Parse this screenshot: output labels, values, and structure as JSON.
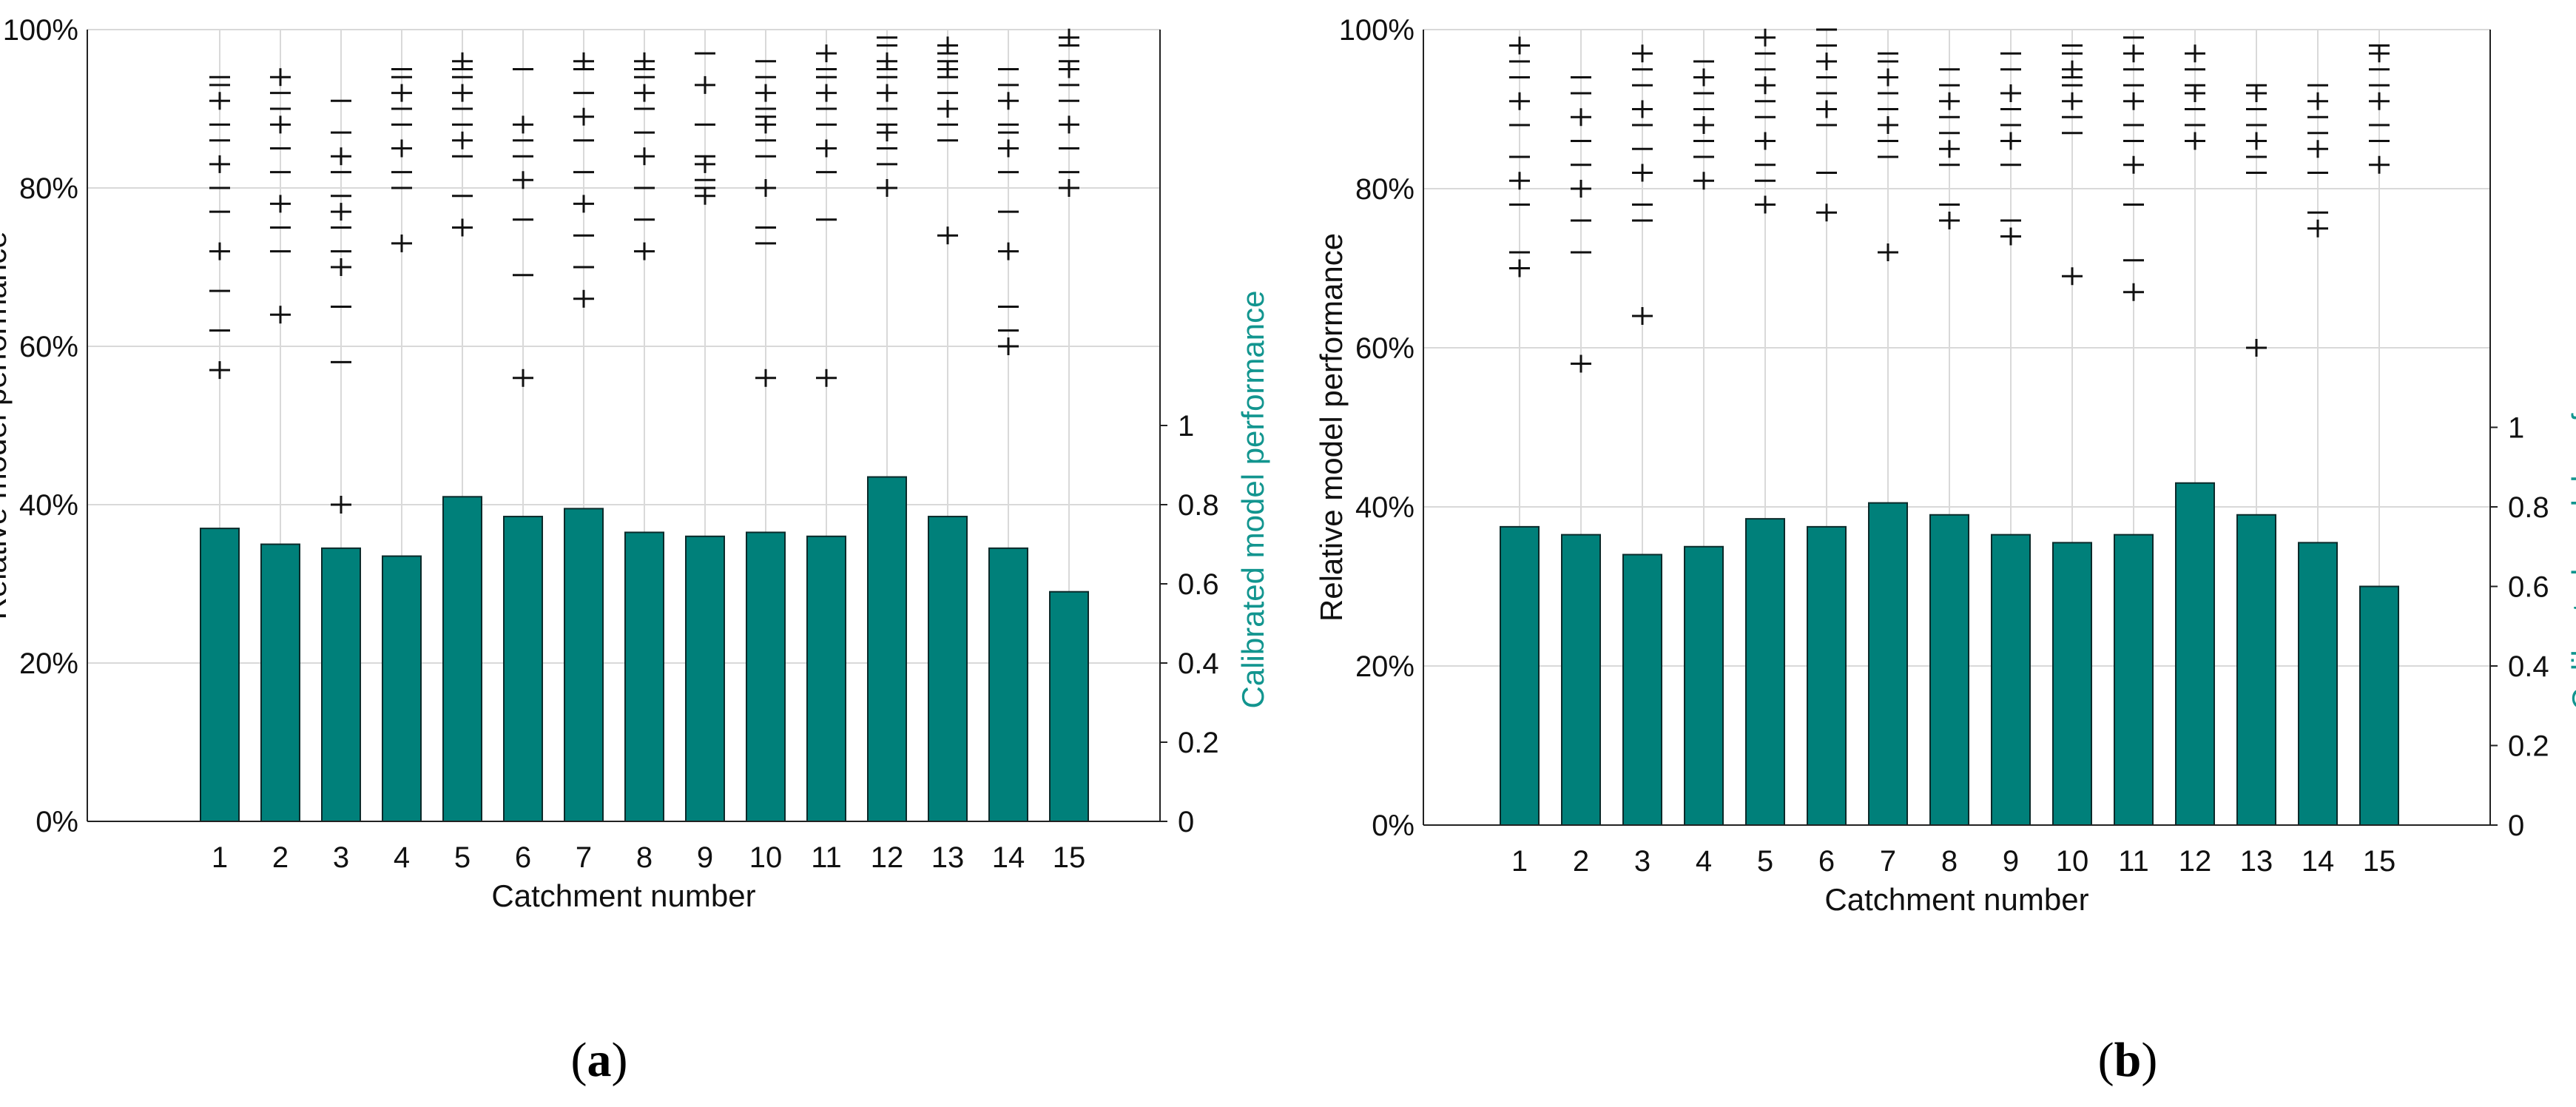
{
  "colors": {
    "bar": "#00807A",
    "bar_edge": "#0b2a2a",
    "grid": "#d9d9d9",
    "marker": "#111111",
    "right_axis_title": "#12958F"
  },
  "chart_data": [
    {
      "panel_id": "a",
      "caption_letter": "a",
      "caption_open": "(",
      "caption_close": ")",
      "type": "bar",
      "title": "",
      "xlabel": "Catchment number",
      "ylabel": "Relative model performance",
      "ylabel_right": "Calibrated model performance",
      "categories": [
        "1",
        "2",
        "3",
        "4",
        "5",
        "6",
        "7",
        "8",
        "9",
        "10",
        "11",
        "12",
        "13",
        "14",
        "15"
      ],
      "ylim": [
        0,
        100
      ],
      "ylim_right": [
        0,
        2
      ],
      "yticks": [
        "0%",
        "20%",
        "40%",
        "60%",
        "80%",
        "100%"
      ],
      "yticks_right": [
        "0",
        "0.2",
        "0.4",
        "0.6",
        "0.8",
        "1"
      ],
      "grid": true,
      "series": [
        {
          "name": "Calibrated model performance",
          "axis": "right",
          "values": [
            0.74,
            0.7,
            0.69,
            0.67,
            0.82,
            0.77,
            0.79,
            0.73,
            0.72,
            0.73,
            0.72,
            0.87,
            0.77,
            0.69,
            0.58
          ]
        }
      ],
      "scatter_markers": {
        "name": "Relative model performance",
        "axis": "left",
        "values": [
          [
            57,
            62,
            67,
            72,
            77,
            80,
            83,
            86,
            88,
            91,
            93,
            94
          ],
          [
            64,
            72,
            75,
            78,
            82,
            85,
            88,
            90,
            92,
            94
          ],
          [
            40,
            58,
            65,
            70,
            72,
            75,
            77,
            79,
            82,
            84,
            87,
            91
          ],
          [
            73,
            80,
            82,
            85,
            88,
            90,
            92,
            94,
            95
          ],
          [
            75,
            79,
            84,
            86,
            88,
            90,
            92,
            94,
            95,
            96
          ],
          [
            56,
            69,
            76,
            81,
            84,
            86,
            88,
            95
          ],
          [
            66,
            70,
            74,
            78,
            82,
            86,
            89,
            92,
            95,
            96
          ],
          [
            72,
            76,
            80,
            84,
            87,
            90,
            92,
            94,
            95,
            96
          ],
          [
            79,
            80,
            81,
            83,
            84,
            88,
            93,
            97
          ],
          [
            56,
            73,
            75,
            80,
            84,
            86,
            88,
            89,
            90,
            92,
            94,
            96
          ],
          [
            56,
            76,
            82,
            85,
            88,
            90,
            92,
            94,
            95,
            97
          ],
          [
            80,
            83,
            85,
            87,
            88,
            90,
            92,
            94,
            95,
            96,
            98,
            99
          ],
          [
            74,
            86,
            88,
            90,
            92,
            94,
            95,
            96,
            97,
            98
          ],
          [
            60,
            62,
            65,
            72,
            77,
            82,
            85,
            87,
            88,
            91,
            93,
            95
          ],
          [
            80,
            82,
            85,
            88,
            91,
            93,
            95,
            96,
            98,
            99
          ]
        ]
      }
    },
    {
      "panel_id": "b",
      "caption_letter": "b",
      "caption_open": "(",
      "caption_close": ")",
      "type": "bar",
      "title": "",
      "xlabel": "Catchment number",
      "ylabel": "Relative model performance",
      "ylabel_right": "Calibrated model performance",
      "categories": [
        "1",
        "2",
        "3",
        "4",
        "5",
        "6",
        "7",
        "8",
        "9",
        "10",
        "11",
        "12",
        "13",
        "14",
        "15"
      ],
      "ylim": [
        0,
        100
      ],
      "ylim_right": [
        0,
        2
      ],
      "yticks": [
        "0%",
        "20%",
        "40%",
        "60%",
        "80%",
        "100%"
      ],
      "yticks_right": [
        "0",
        "0.2",
        "0.4",
        "0.6",
        "0.8",
        "1"
      ],
      "grid": true,
      "series": [
        {
          "name": "Calibrated model performance",
          "axis": "right",
          "values": [
            0.75,
            0.73,
            0.68,
            0.7,
            0.77,
            0.75,
            0.81,
            0.78,
            0.73,
            0.71,
            0.73,
            0.86,
            0.78,
            0.71,
            0.6
          ]
        }
      ],
      "scatter_markers": {
        "name": "Relative model performance",
        "axis": "left",
        "values": [
          [
            70,
            72,
            78,
            81,
            84,
            88,
            91,
            94,
            96,
            98
          ],
          [
            58,
            72,
            76,
            80,
            83,
            86,
            89,
            92,
            94
          ],
          [
            64,
            76,
            78,
            82,
            85,
            88,
            90,
            93,
            95,
            97
          ],
          [
            81,
            84,
            86,
            88,
            90,
            92,
            94,
            96
          ],
          [
            78,
            81,
            83,
            86,
            89,
            91,
            93,
            95,
            97,
            99
          ],
          [
            77,
            82,
            88,
            90,
            92,
            94,
            96,
            98,
            100
          ],
          [
            72,
            84,
            86,
            88,
            90,
            92,
            94,
            96,
            97
          ],
          [
            76,
            78,
            83,
            85,
            87,
            89,
            91,
            93,
            95
          ],
          [
            74,
            76,
            83,
            86,
            88,
            90,
            92,
            95,
            97
          ],
          [
            69,
            87,
            89,
            91,
            93,
            94,
            95,
            97,
            98
          ],
          [
            67,
            71,
            78,
            83,
            86,
            88,
            91,
            93,
            95,
            97,
            99
          ],
          [
            86,
            88,
            90,
            92,
            93,
            95,
            97
          ],
          [
            60,
            82,
            84,
            86,
            88,
            90,
            92,
            93
          ],
          [
            75,
            77,
            82,
            85,
            87,
            89,
            91,
            93
          ],
          [
            83,
            86,
            88,
            91,
            93,
            95,
            97,
            98
          ]
        ]
      }
    }
  ]
}
